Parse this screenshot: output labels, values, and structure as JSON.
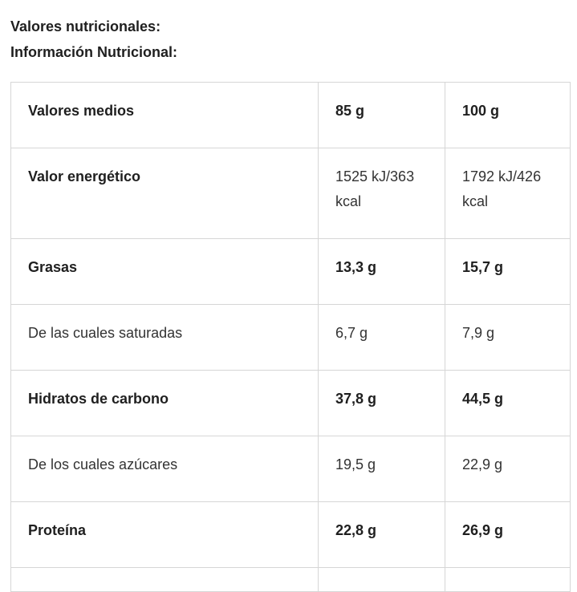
{
  "headings": {
    "line1": "Valores nutricionales:",
    "line2": "Información Nutricional:"
  },
  "table": {
    "header": {
      "label": "Valores medios",
      "col1": "85 g",
      "col2": "100 g"
    },
    "rows": [
      {
        "label": "Valor energético",
        "col1": "1525 kJ/363 kcal",
        "col2": "1792 kJ/426 kcal",
        "label_bold": true,
        "values_bold": false
      },
      {
        "label": "Grasas",
        "col1": "13,3 g",
        "col2": "15,7 g",
        "label_bold": true,
        "values_bold": true
      },
      {
        "label": "De las cuales saturadas",
        "col1": "6,7 g",
        "col2": "7,9 g",
        "label_bold": false,
        "values_bold": false
      },
      {
        "label": "Hidratos de carbono",
        "col1": "37,8 g",
        "col2": "44,5 g",
        "label_bold": true,
        "values_bold": true
      },
      {
        "label": "De los cuales azúcares",
        "col1": "19,5 g",
        "col2": "22,9 g",
        "label_bold": false,
        "values_bold": false
      },
      {
        "label": "Proteína",
        "col1": "22,8 g",
        "col2": "26,9 g",
        "label_bold": true,
        "values_bold": true
      }
    ]
  }
}
